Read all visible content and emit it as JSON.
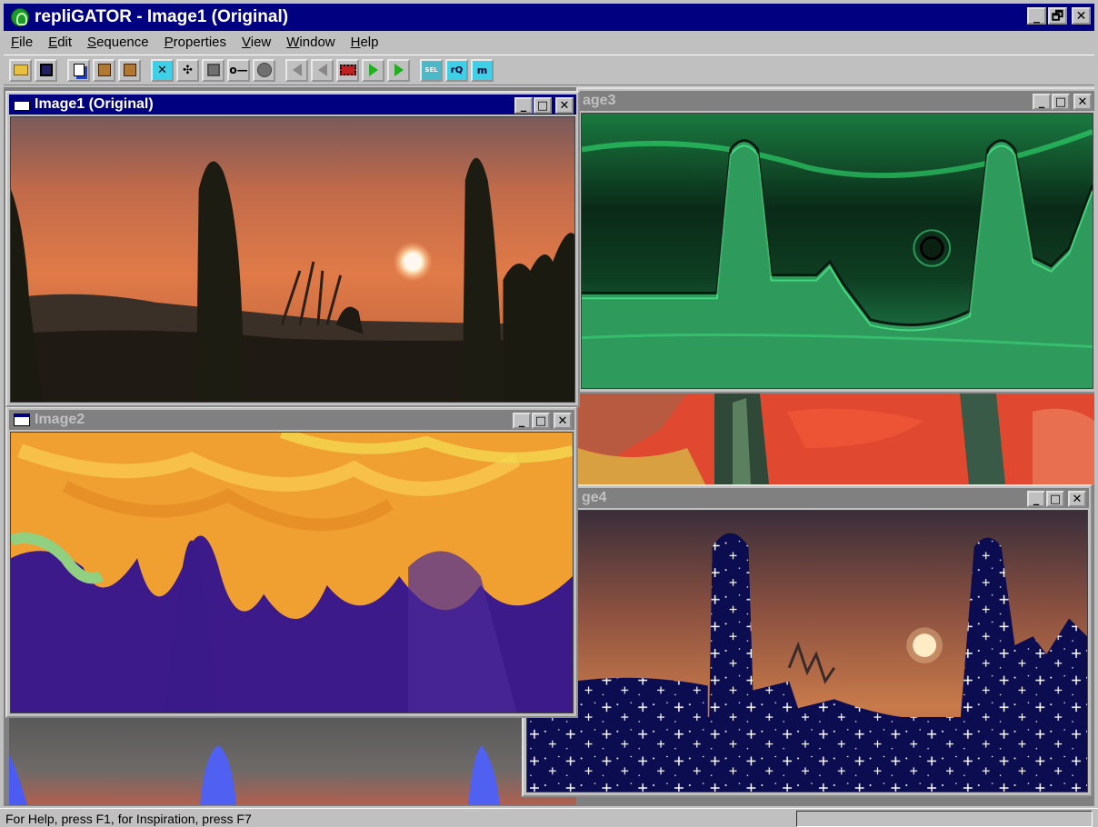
{
  "app": {
    "title": "repliGATOR - Image1 (Original)",
    "buttons": {
      "minimize": "_",
      "restore": "🗗",
      "close": "✕"
    }
  },
  "menubar": {
    "items": [
      {
        "label": "File",
        "hotkey": "F",
        "rest": "ile"
      },
      {
        "label": "Edit",
        "hotkey": "E",
        "rest": "dit"
      },
      {
        "label": "Sequence",
        "hotkey": "S",
        "rest": "equence"
      },
      {
        "label": "Properties",
        "hotkey": "P",
        "rest": "roperties"
      },
      {
        "label": "View",
        "hotkey": "V",
        "rest": "iew"
      },
      {
        "label": "Window",
        "hotkey": "W",
        "rest": "indow"
      },
      {
        "label": "Help",
        "hotkey": "H",
        "rest": "elp"
      }
    ]
  },
  "toolbar": {
    "icons": [
      "open-icon",
      "save-icon",
      "copy-icon",
      "paste-icon",
      "paste-special-icon",
      "select-icon",
      "target-icon",
      "mask-icon",
      "key-icon",
      "sphere-icon",
      "first-frame-icon",
      "prev-frame-icon",
      "film-icon",
      "next-frame-icon",
      "last-frame-icon",
      "sel-icon",
      "rq-icon",
      "m-icon"
    ],
    "text_labels": {
      "sel": "SEL",
      "rq": "rQ",
      "m": "m"
    }
  },
  "windows": {
    "image1": {
      "title": "Image1 (Original)"
    },
    "image2": {
      "title": "Image2"
    },
    "image3": {
      "title": "age3"
    },
    "image4": {
      "title": "ge4"
    }
  },
  "window_buttons": {
    "minimize": "_",
    "maximize": "□",
    "close": "✕"
  },
  "statusbar": {
    "text": "For Help, press F1, for Inspiration, press F7",
    "pane": ""
  },
  "colors": {
    "active_title": "#000080",
    "inactive_title": "#808080",
    "face": "#c0c0c0"
  }
}
